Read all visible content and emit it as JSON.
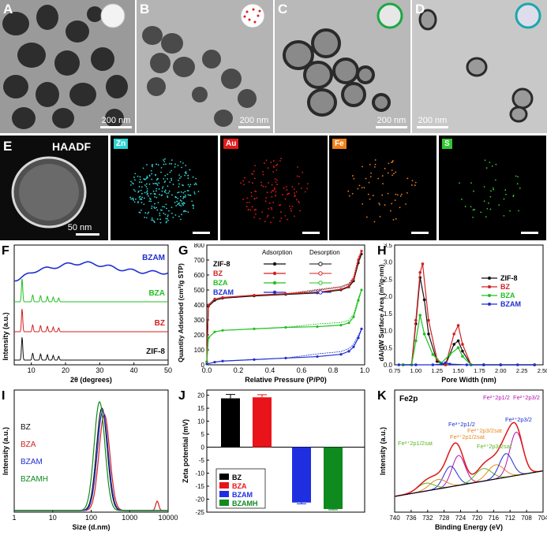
{
  "panels": {
    "A": {
      "letter": "A",
      "scale": "200 nm"
    },
    "B": {
      "letter": "B",
      "scale": "200 nm"
    },
    "C": {
      "letter": "C",
      "scale": "200 nm"
    },
    "D": {
      "letter": "D",
      "scale": "200 nm"
    },
    "E": {
      "letter": "E",
      "title": "HAADF",
      "scale": "50 nm"
    },
    "F": {
      "letter": "F"
    },
    "G": {
      "letter": "G"
    },
    "H": {
      "letter": "H"
    },
    "I": {
      "letter": "I"
    },
    "J": {
      "letter": "J"
    },
    "K": {
      "letter": "K"
    }
  },
  "eds_maps": [
    {
      "element": "Zn",
      "color": "#2fd3d3"
    },
    {
      "element": "Au",
      "color": "#e21b1b"
    },
    {
      "element": "Fe",
      "color": "#f07f1b"
    },
    {
      "element": "S",
      "color": "#2fc82f"
    }
  ],
  "chart_data": [
    {
      "id": "F",
      "type": "line",
      "xlabel": "2θ (degrees)",
      "ylabel": "Intensity (a.u.)",
      "xlim": [
        5,
        50
      ],
      "xticks": [
        10,
        20,
        30,
        40,
        50
      ],
      "series": [
        {
          "name": "BZAM",
          "color": "#1f2fd1",
          "peaks": []
        },
        {
          "name": "BZA",
          "color": "#20c020",
          "peaks": [
            7.3,
            10.4,
            12.7,
            14.7,
            16.4,
            18.0
          ]
        },
        {
          "name": "BZ",
          "color": "#d42020",
          "peaks": [
            7.3,
            10.4,
            12.7,
            14.7,
            16.4,
            18.0
          ]
        },
        {
          "name": "ZIF-8",
          "color": "#111111",
          "peaks": [
            7.3,
            10.4,
            12.7,
            14.7,
            16.4,
            18.0
          ]
        }
      ]
    },
    {
      "id": "G",
      "type": "line",
      "xlabel": "Relative Pressure (P/P0)",
      "ylabel": "Quantity Adsorbed (cm³/g STP)",
      "xlim": [
        0,
        1.0
      ],
      "ylim": [
        0,
        800
      ],
      "xticks": [
        "0.0",
        "0.2",
        "0.4",
        "0.6",
        "0.8",
        "1.0"
      ],
      "yticks": [
        0,
        100,
        200,
        300,
        400,
        500,
        600,
        700,
        800
      ],
      "legend_headers": [
        "Adsorption",
        "Desorption"
      ],
      "series": [
        {
          "name": "ZIF-8",
          "color": "#111111",
          "x": [
            0,
            0.01,
            0.05,
            0.1,
            0.3,
            0.5,
            0.7,
            0.85,
            0.9,
            0.93,
            0.96,
            0.98
          ],
          "y": [
            20,
            390,
            430,
            445,
            460,
            470,
            480,
            500,
            520,
            560,
            680,
            740
          ]
        },
        {
          "name": "BZ",
          "color": "#d42020",
          "x": [
            0,
            0.01,
            0.05,
            0.1,
            0.3,
            0.5,
            0.7,
            0.85,
            0.9,
            0.93,
            0.96,
            0.98
          ],
          "y": [
            20,
            400,
            440,
            450,
            465,
            475,
            485,
            505,
            525,
            570,
            700,
            760
          ]
        },
        {
          "name": "BZA",
          "color": "#20c020",
          "x": [
            0,
            0.01,
            0.05,
            0.1,
            0.3,
            0.5,
            0.7,
            0.85,
            0.9,
            0.93,
            0.96,
            0.98
          ],
          "y": [
            10,
            180,
            220,
            230,
            240,
            250,
            255,
            265,
            280,
            320,
            430,
            500
          ]
        },
        {
          "name": "BZAM",
          "color": "#1f2fd1",
          "x": [
            0,
            0.05,
            0.1,
            0.3,
            0.5,
            0.7,
            0.85,
            0.9,
            0.93,
            0.96,
            0.98
          ],
          "y": [
            5,
            18,
            25,
            35,
            45,
            55,
            70,
            90,
            120,
            180,
            240
          ]
        }
      ]
    },
    {
      "id": "H",
      "type": "line",
      "xlabel": "Pore Width (nm)",
      "ylabel": "dA/dW Surface Area (m²/g·nm)",
      "xlim": [
        0.75,
        2.5
      ],
      "ylim": [
        0,
        3.5
      ],
      "xticks": [
        "0.75",
        "1.00",
        "1.25",
        "1.50",
        "1.75",
        "2.00",
        "2.25",
        "2.50"
      ],
      "yticks": [
        0,
        0.5,
        1.0,
        1.5,
        2.0,
        2.5,
        3.0,
        3.5
      ],
      "series": [
        {
          "name": "ZIF-8",
          "color": "#111111",
          "x": [
            0.85,
            0.95,
            1.0,
            1.05,
            1.1,
            1.15,
            1.25,
            1.35,
            1.45,
            1.5,
            1.55,
            1.65,
            1.8,
            2.0,
            2.4
          ],
          "y": [
            0,
            0,
            1.2,
            2.55,
            1.9,
            0.9,
            0.1,
            0,
            0.6,
            0.7,
            0.4,
            0,
            0,
            0,
            0
          ]
        },
        {
          "name": "BZ",
          "color": "#d42020",
          "x": [
            0.85,
            0.95,
            1.0,
            1.05,
            1.08,
            1.15,
            1.25,
            1.35,
            1.45,
            1.5,
            1.55,
            1.65,
            1.8,
            2.0,
            2.4
          ],
          "y": [
            0,
            0,
            1.3,
            2.7,
            2.95,
            1.3,
            0.15,
            0,
            0.9,
            1.15,
            0.6,
            0,
            0,
            0,
            0
          ]
        },
        {
          "name": "BZA",
          "color": "#20c020",
          "x": [
            0.85,
            0.95,
            1.0,
            1.05,
            1.1,
            1.2,
            1.3,
            1.4,
            1.5,
            1.55,
            1.65,
            1.8,
            2.0,
            2.4
          ],
          "y": [
            0,
            0,
            0.7,
            1.45,
            0.9,
            0.3,
            0.05,
            0.3,
            0.5,
            0.25,
            0,
            0,
            0,
            0
          ]
        },
        {
          "name": "BZAM",
          "color": "#1f2fd1",
          "x": [
            0.8,
            1.0,
            1.2,
            1.3,
            1.35,
            1.4,
            1.6,
            1.8,
            2.0,
            2.2,
            2.4
          ],
          "y": [
            0,
            0,
            0,
            0.02,
            0.06,
            0.02,
            0,
            0,
            0,
            0,
            0
          ]
        }
      ]
    },
    {
      "id": "I",
      "type": "line",
      "xlabel": "Size (d.nm)",
      "ylabel": "Intensity (a.u.)",
      "xscale": "log",
      "xlim": [
        1,
        10000
      ],
      "xticks": [
        "1",
        "10",
        "100",
        "1000",
        "10000"
      ],
      "series": [
        {
          "name": "BZ",
          "color": "#111111",
          "peak": 190
        },
        {
          "name": "BZA",
          "color": "#d42020",
          "peak": 220
        },
        {
          "name": "BZAM",
          "color": "#1f2fd1",
          "peak": 200
        },
        {
          "name": "BZAMH",
          "color": "#0e8a1e",
          "peak": 165
        }
      ]
    },
    {
      "id": "J",
      "type": "bar",
      "ylabel": "Zeta potential (mV)",
      "ylim": [
        -25,
        22
      ],
      "yticks": [
        -25,
        -20,
        -15,
        -10,
        -5,
        0,
        5,
        10,
        15,
        20
      ],
      "categories": [
        "BZ",
        "BZA",
        "BZAM",
        "BZAMH"
      ],
      "values": [
        18.8,
        19.2,
        -21.3,
        -23.8
      ],
      "errors": [
        1.5,
        1.0,
        0.5,
        0.3
      ],
      "colors": [
        "#000000",
        "#e8141a",
        "#1f2fe0",
        "#0e8a1e"
      ]
    },
    {
      "id": "K",
      "type": "line",
      "title": "Fe2p",
      "xlabel": "Binding Energy (eV)",
      "ylabel": "Intensity (a.u.)",
      "xlim": [
        740,
        704
      ],
      "xticks": [
        740,
        736,
        732,
        728,
        724,
        720,
        716,
        712,
        708,
        704
      ],
      "annotations": [
        {
          "text": "Fe²⁺2p1/2",
          "color": "#b313b3"
        },
        {
          "text": "Fe³⁺2p1/2",
          "color": "#1f2fd1"
        },
        {
          "text": "Fe³⁺2p1/2sat",
          "color": "#e58a20"
        },
        {
          "text": "Fe²⁺2p1/2sat",
          "color": "#5ab81f"
        },
        {
          "text": "Fe²⁺2p3/2sat",
          "color": "#e58a20"
        },
        {
          "text": "Fe³⁺2p3/2sat",
          "color": "#5ab81f"
        },
        {
          "text": "Fe³⁺2p3/2",
          "color": "#1f2fd1"
        },
        {
          "text": "Fe²⁺2p3/2",
          "color": "#b313b3"
        }
      ]
    }
  ]
}
